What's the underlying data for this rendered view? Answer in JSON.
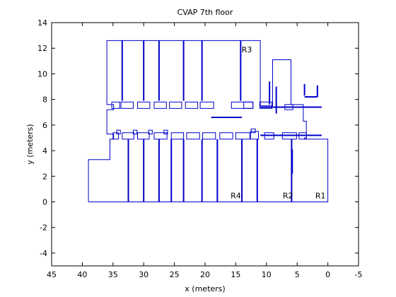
{
  "chart_data": {
    "type": "line",
    "title": "CVAP 7th floor",
    "xlabel": "x (meters)",
    "ylabel": "y (meters)",
    "xlim": [
      45,
      -5
    ],
    "ylim": [
      -5,
      14
    ],
    "x_reversed": true,
    "xticks": [
      45,
      40,
      35,
      30,
      25,
      20,
      15,
      10,
      5,
      0,
      -5
    ],
    "yticks": [
      -4,
      -2,
      0,
      2,
      4,
      6,
      8,
      10,
      12,
      14
    ],
    "grid": false,
    "line_color": "#0000cc",
    "annotations": [
      {
        "text": "R3",
        "x": 13.2,
        "y": 11.9
      },
      {
        "text": "R4",
        "x": 15.0,
        "y": 0.5
      },
      {
        "text": "R2",
        "x": 6.5,
        "y": 0.5
      },
      {
        "text": "R1",
        "x": 1.2,
        "y": 0.5
      }
    ],
    "outline": [
      [
        39.0,
        0
      ],
      [
        39.0,
        3.3
      ],
      [
        35.5,
        3.3
      ],
      [
        35.5,
        4.9
      ],
      [
        34.9,
        4.9
      ],
      [
        34.9,
        5.3
      ],
      [
        36.0,
        5.3
      ],
      [
        36.0,
        7.2
      ],
      [
        34.9,
        7.2
      ],
      [
        34.9,
        7.6
      ],
      [
        36.0,
        7.6
      ],
      [
        36.0,
        12.6
      ],
      [
        11.0,
        12.6
      ],
      [
        11.0,
        7.5
      ],
      [
        9.0,
        7.5
      ],
      [
        9.0,
        11.1
      ],
      [
        6.0,
        11.1
      ],
      [
        6.0,
        7.6
      ],
      [
        4.0,
        7.6
      ],
      [
        4.0,
        6.3
      ],
      [
        3.5,
        6.3
      ],
      [
        3.5,
        5.0
      ],
      [
        3.8,
        5.0
      ],
      [
        3.8,
        4.9
      ],
      [
        0,
        4.9
      ],
      [
        0,
        0
      ],
      [
        39.0,
        0
      ]
    ],
    "segments": [
      {
        "x": [
          11,
          1
        ],
        "y": [
          7.4,
          7.4
        ]
      },
      {
        "x": [
          11,
          1
        ],
        "y": [
          5.2,
          5.2
        ]
      },
      {
        "x": [
          32.5,
          32.5
        ],
        "y": [
          0,
          4.9
        ]
      },
      {
        "x": [
          30,
          30
        ],
        "y": [
          0,
          4.9
        ]
      },
      {
        "x": [
          27.5,
          27.5
        ],
        "y": [
          0,
          4.9
        ]
      },
      {
        "x": [
          25.5,
          25.5
        ],
        "y": [
          0,
          4.9
        ]
      },
      {
        "x": [
          23.5,
          23.5
        ],
        "y": [
          0,
          4.9
        ]
      },
      {
        "x": [
          20.5,
          20.5
        ],
        "y": [
          0,
          4.9
        ]
      },
      {
        "x": [
          18,
          18
        ],
        "y": [
          0,
          4.9
        ]
      },
      {
        "x": [
          14,
          14
        ],
        "y": [
          0,
          4.9
        ]
      },
      {
        "x": [
          11.5,
          11.5
        ],
        "y": [
          0,
          4.9
        ]
      },
      {
        "x": [
          5.9,
          5.9
        ],
        "y": [
          0,
          4.9
        ]
      },
      {
        "x": [
          33.5,
          33.5
        ],
        "y": [
          7.9,
          12.6
        ]
      },
      {
        "x": [
          30.0,
          30.0
        ],
        "y": [
          7.9,
          12.6
        ]
      },
      {
        "x": [
          27.5,
          27.5
        ],
        "y": [
          7.9,
          12.6
        ]
      },
      {
        "x": [
          23.5,
          23.5
        ],
        "y": [
          7.9,
          12.6
        ]
      },
      {
        "x": [
          20.5,
          20.5
        ],
        "y": [
          7.9,
          12.6
        ]
      },
      {
        "x": [
          14.2,
          14.2
        ],
        "y": [
          7.9,
          12.6
        ]
      },
      {
        "x": [
          19,
          14
        ],
        "y": [
          6.6,
          6.6
        ]
      },
      {
        "x": [
          9.5,
          9.5
        ],
        "y": [
          7.6,
          9.4
        ]
      },
      {
        "x": [
          8.4,
          8.4
        ],
        "y": [
          6.9,
          9.0
        ]
      },
      {
        "x": [
          5.8,
          5.8
        ],
        "y": [
          2.2,
          4.1
        ]
      },
      {
        "x": [
          3.8,
          3.8
        ],
        "y": [
          8.3,
          9.2
        ]
      },
      {
        "x": [
          3.8,
          1.7
        ],
        "y": [
          8.2,
          8.2
        ]
      },
      {
        "x": [
          1.7,
          1.7
        ],
        "y": [
          8.2,
          9.1
        ]
      }
    ],
    "rooms_top": [
      [
        35.2,
        7.3,
        1.3,
        0.5
      ],
      [
        33.7,
        7.3,
        2.0,
        0.5
      ],
      [
        31.0,
        7.3,
        2.0,
        0.5
      ],
      [
        28.3,
        7.3,
        2.0,
        0.5
      ],
      [
        25.8,
        7.3,
        2.0,
        0.5
      ],
      [
        23.2,
        7.3,
        2.0,
        0.5
      ],
      [
        20.8,
        7.3,
        2.2,
        0.5
      ],
      [
        15.7,
        7.3,
        3.5,
        0.5
      ],
      [
        13.7,
        7.3,
        1.5,
        0.5
      ],
      [
        11.1,
        7.3,
        2.0,
        0.5
      ],
      [
        7.0,
        7.2,
        1.3,
        0.4
      ]
    ],
    "rooms_bottom": [
      [
        35.0,
        4.9,
        0.9,
        0.5
      ],
      [
        33.5,
        4.9,
        1.9,
        0.5
      ],
      [
        31.0,
        4.9,
        1.9,
        0.5
      ],
      [
        28.3,
        4.9,
        2.1,
        0.5
      ],
      [
        25.5,
        4.9,
        2.0,
        0.5
      ],
      [
        23.0,
        4.9,
        2.1,
        0.5
      ],
      [
        20.4,
        4.9,
        2.1,
        0.5
      ],
      [
        17.6,
        4.9,
        2.1,
        0.5
      ],
      [
        15.0,
        4.9,
        2.3,
        0.5
      ],
      [
        12.6,
        4.9,
        1.3,
        0.6
      ],
      [
        10.3,
        4.9,
        1.5,
        0.5
      ],
      [
        7.4,
        4.9,
        2.3,
        0.5
      ],
      [
        4.7,
        4.9,
        1.2,
        0.5
      ]
    ],
    "notches": [
      [
        34.4,
        5.3,
        0.6,
        0.3
      ],
      [
        31.7,
        5.3,
        0.6,
        0.3
      ],
      [
        29.2,
        5.3,
        0.6,
        0.3
      ],
      [
        26.7,
        5.3,
        0.6,
        0.3
      ],
      [
        12.5,
        5.4,
        0.7,
        0.3
      ]
    ]
  }
}
